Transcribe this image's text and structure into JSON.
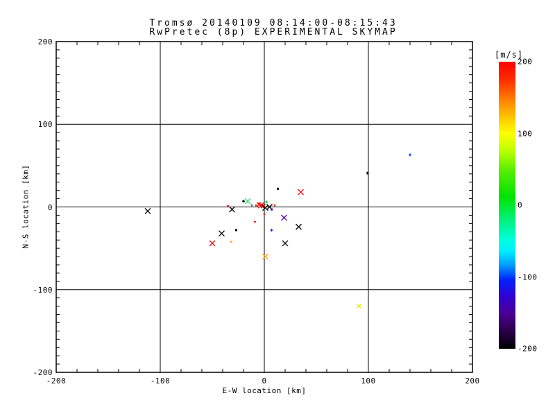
{
  "chart_data": {
    "type": "scatter",
    "title_line1": "Tromsø 20140109 08:14:00-08:15:43",
    "title_line2": "RwPretec (8p) EXPERIMENTAL SKYMAP",
    "xlabel": "E-W location [km]",
    "ylabel": "N-S location [km]",
    "xlim": [
      -200,
      200
    ],
    "ylim": [
      -200,
      200
    ],
    "x_ticks": [
      -200,
      -100,
      0,
      100,
      200
    ],
    "y_ticks": [
      200,
      100,
      0,
      -100,
      -200
    ],
    "x_minor_step": 20,
    "y_minor_step": 10,
    "grid": true,
    "frame_color": "#000000",
    "marker_legend": "x markers colored by Doppler velocity [m/s], rainbow colormap",
    "points": [
      {
        "x": -112,
        "y": -5,
        "v_ms": -200,
        "color": "#000000",
        "shape": "x",
        "size": 4
      },
      {
        "x": -50,
        "y": -44,
        "v_ms": 195,
        "color": "#FF0000",
        "shape": "x",
        "size": 4
      },
      {
        "x": -41,
        "y": -32,
        "v_ms": -200,
        "color": "#000000",
        "shape": "x",
        "size": 4
      },
      {
        "x": -35,
        "y": 1,
        "v_ms": 195,
        "color": "#FF0000",
        "shape": "tri",
        "size": 2
      },
      {
        "x": -32,
        "y": -42,
        "v_ms": 150,
        "color": "#FFA000",
        "shape": "tri",
        "size": 2
      },
      {
        "x": -31,
        "y": -3,
        "v_ms": -200,
        "color": "#000000",
        "shape": "x",
        "size": 4
      },
      {
        "x": -27,
        "y": -28,
        "v_ms": -200,
        "color": "#000000",
        "shape": "dot",
        "size": 2
      },
      {
        "x": -20,
        "y": 7,
        "v_ms": -200,
        "color": "#000000",
        "shape": "plus",
        "size": 2
      },
      {
        "x": -16,
        "y": 7,
        "v_ms": -20,
        "color": "#22E070",
        "shape": "x",
        "size": 4
      },
      {
        "x": -12,
        "y": 2,
        "v_ms": -40,
        "color": "#008866",
        "shape": "tri",
        "size": 2
      },
      {
        "x": -9,
        "y": -18,
        "v_ms": 195,
        "color": "#FF0000",
        "shape": "tri",
        "size": 2
      },
      {
        "x": -8,
        "y": 2,
        "v_ms": 195,
        "color": "#FF0000",
        "shape": "tri",
        "size": 2
      },
      {
        "x": -5,
        "y": 3,
        "v_ms": 195,
        "color": "#FF0000",
        "shape": "x",
        "size": 3
      },
      {
        "x": -3,
        "y": 2,
        "v_ms": 195,
        "color": "#FF0000",
        "shape": "x",
        "size": 4
      },
      {
        "x": -1,
        "y": 1,
        "v_ms": 200,
        "color": "#D00000",
        "shape": "x",
        "size": 3
      },
      {
        "x": 0,
        "y": -9,
        "v_ms": 195,
        "color": "#FF0000",
        "shape": "tri",
        "size": 2
      },
      {
        "x": 1,
        "y": -60,
        "v_ms": 150,
        "color": "#FFA000",
        "shape": "x",
        "size": 4
      },
      {
        "x": 1,
        "y": -1,
        "v_ms": -200,
        "color": "#000000",
        "shape": "x",
        "size": 4
      },
      {
        "x": 2,
        "y": 6,
        "v_ms": 10,
        "color": "#00CC33",
        "shape": "plus",
        "size": 2
      },
      {
        "x": 5,
        "y": 0,
        "v_ms": -200,
        "color": "#000000",
        "shape": "x",
        "size": 4
      },
      {
        "x": 7,
        "y": -3,
        "v_ms": -160,
        "color": "#440099",
        "shape": "dot",
        "size": 2
      },
      {
        "x": 7,
        "y": -28,
        "v_ms": -115,
        "color": "#0033FF",
        "shape": "plus",
        "size": 2
      },
      {
        "x": 10,
        "y": 2,
        "v_ms": 195,
        "color": "#FF0000",
        "shape": "tri",
        "size": 2
      },
      {
        "x": 13,
        "y": 22,
        "v_ms": -200,
        "color": "#000000",
        "shape": "dot",
        "size": 2
      },
      {
        "x": 19,
        "y": -13,
        "v_ms": -150,
        "color": "#5508C8",
        "shape": "x",
        "size": 4
      },
      {
        "x": 20,
        "y": -44,
        "v_ms": -200,
        "color": "#000000",
        "shape": "x",
        "size": 4
      },
      {
        "x": 33,
        "y": -24,
        "v_ms": -200,
        "color": "#000000",
        "shape": "x",
        "size": 4
      },
      {
        "x": 35,
        "y": 18,
        "v_ms": 195,
        "color": "#FF0000",
        "shape": "x",
        "size": 4
      },
      {
        "x": 91,
        "y": -120,
        "v_ms": 105,
        "color": "#E0F000",
        "shape": "x",
        "size": 3
      },
      {
        "x": 99,
        "y": 41,
        "v_ms": -200,
        "color": "#000000",
        "shape": "plus",
        "size": 2
      },
      {
        "x": 140,
        "y": 63,
        "v_ms": -110,
        "color": "#0044FF",
        "shape": "plus",
        "size": 2
      }
    ],
    "colorbar": {
      "label": "[m/s]",
      "min": -200,
      "max": 200,
      "ticks": [
        200,
        100,
        0,
        -100,
        -200
      ],
      "stops": [
        {
          "pos": 0.0,
          "color": "#FF0000"
        },
        {
          "pos": 0.06,
          "color": "#FF2A00"
        },
        {
          "pos": 0.14,
          "color": "#FF8800"
        },
        {
          "pos": 0.2,
          "color": "#FFCC00"
        },
        {
          "pos": 0.25,
          "color": "#FFFF00"
        },
        {
          "pos": 0.31,
          "color": "#BBFF00"
        },
        {
          "pos": 0.38,
          "color": "#55EE00"
        },
        {
          "pos": 0.47,
          "color": "#00E400"
        },
        {
          "pos": 0.55,
          "color": "#00F07A"
        },
        {
          "pos": 0.62,
          "color": "#00FFDD"
        },
        {
          "pos": 0.66,
          "color": "#00EEFF"
        },
        {
          "pos": 0.71,
          "color": "#0099FF"
        },
        {
          "pos": 0.76,
          "color": "#0022FF"
        },
        {
          "pos": 0.82,
          "color": "#3300D0"
        },
        {
          "pos": 0.88,
          "color": "#4A0090"
        },
        {
          "pos": 0.94,
          "color": "#2A0048"
        },
        {
          "pos": 1.0,
          "color": "#000000"
        }
      ]
    }
  }
}
